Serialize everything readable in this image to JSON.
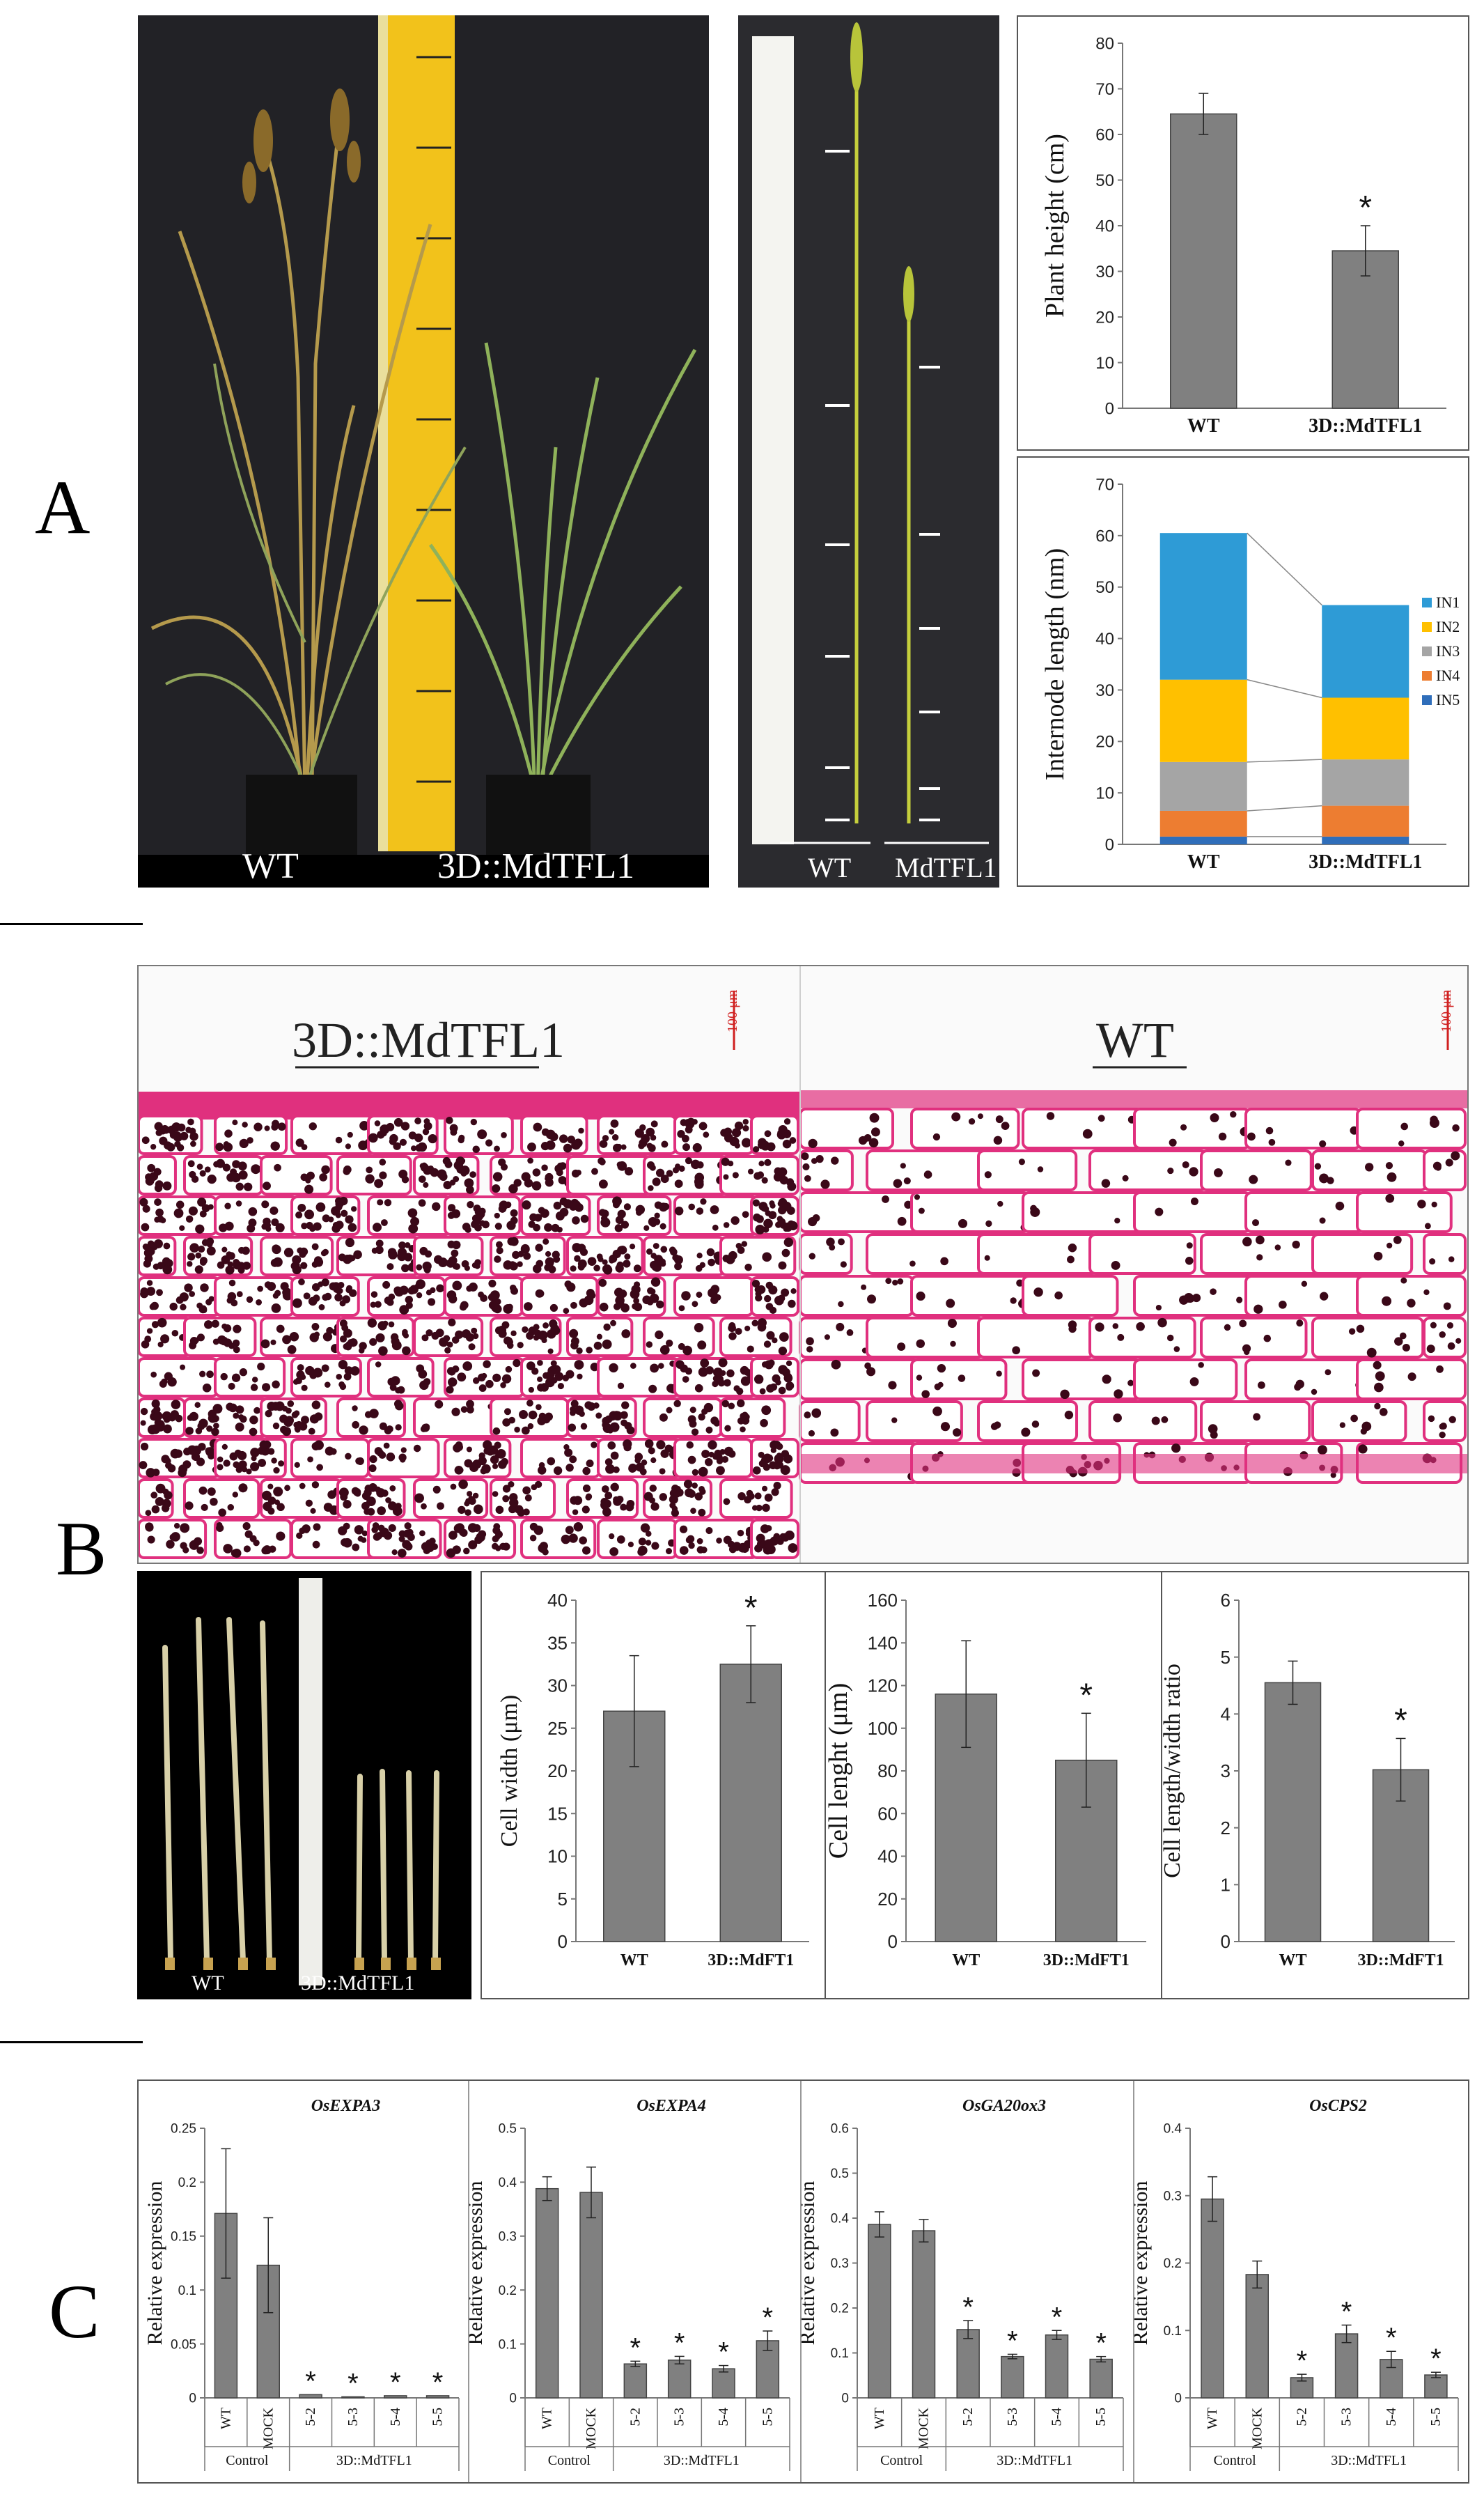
{
  "panel_labels": {
    "a": "A",
    "b": "B",
    "c": "C"
  },
  "photos": {
    "plants": {
      "wt": "WT",
      "mutant": "3D::MdTFL1"
    },
    "stems": {
      "wt": "WT",
      "mutant": "MdTFL1"
    },
    "sections": {
      "left_title": "3D::MdTFL1",
      "right_title": "WT",
      "scale_left": "100 μm",
      "scale_right": "100 μm"
    },
    "internodes": {
      "wt": "WT",
      "mutant": "3D::MdTFL1"
    }
  },
  "colors": {
    "bar_gray": "#808080",
    "IN1": "#2E9BD6",
    "IN2": "#FFC000",
    "IN3": "#A5A5A5",
    "IN4": "#ED7D31",
    "IN5": "#2F6EBA",
    "stain": "#e0307e"
  },
  "chart_data": [
    {
      "id": "plant_height",
      "type": "bar",
      "categories": [
        "WT",
        "3D::MdTFL1"
      ],
      "values": [
        64.5,
        34.5
      ],
      "errors": [
        4.5,
        5.5
      ],
      "significance": [
        "",
        "*"
      ],
      "ylabel": "Plant height (cm)",
      "ylim": [
        0,
        80
      ],
      "yticks": [
        "0",
        "10",
        "20",
        "30",
        "40",
        "50",
        "60",
        "70",
        "80"
      ]
    },
    {
      "id": "internode_length",
      "type": "bar",
      "stacked": true,
      "categories": [
        "WT",
        "3D::MdTFL1"
      ],
      "series": [
        {
          "name": "IN5",
          "values": [
            1.5,
            1.5
          ]
        },
        {
          "name": "IN4",
          "values": [
            5.0,
            6.0
          ]
        },
        {
          "name": "IN3",
          "values": [
            9.5,
            9.0
          ]
        },
        {
          "name": "IN2",
          "values": [
            16.0,
            12.0
          ]
        },
        {
          "name": "IN1",
          "values": [
            28.5,
            18.0
          ]
        }
      ],
      "legend": [
        "IN1",
        "IN2",
        "IN3",
        "IN4",
        "IN5"
      ],
      "legend_position": "right",
      "ylabel": "Internode length (nm)",
      "ylim": [
        0,
        70
      ],
      "yticks": [
        "0",
        "10",
        "20",
        "30",
        "40",
        "50",
        "60",
        "70"
      ]
    },
    {
      "id": "cell_width",
      "type": "bar",
      "categories": [
        "WT",
        "3D::MdFT1"
      ],
      "values": [
        27.0,
        32.5
      ],
      "errors": [
        6.5,
        4.5
      ],
      "significance": [
        "",
        "*"
      ],
      "ylabel": "Cell width (μm)",
      "ylim": [
        0,
        40
      ],
      "yticks": [
        "0",
        "5",
        "10",
        "15",
        "20",
        "25",
        "30",
        "35",
        "40"
      ]
    },
    {
      "id": "cell_length",
      "type": "bar",
      "categories": [
        "WT",
        "3D::MdFT1"
      ],
      "values": [
        116.0,
        85.0
      ],
      "errors": [
        25.0,
        22.0
      ],
      "significance": [
        "",
        "*"
      ],
      "ylabel": "Cell lenght (μm)",
      "ylim": [
        0,
        160
      ],
      "yticks": [
        "0",
        "20",
        "40",
        "60",
        "80",
        "100",
        "120",
        "140",
        "160"
      ]
    },
    {
      "id": "cell_ratio",
      "type": "bar",
      "categories": [
        "WT",
        "3D::MdFT1"
      ],
      "values": [
        4.55,
        3.02
      ],
      "errors": [
        0.38,
        0.55
      ],
      "significance": [
        "",
        "*"
      ],
      "ylabel": "Cell length/width ratio",
      "ylim": [
        0,
        6
      ],
      "yticks": [
        "0",
        "1",
        "2",
        "3",
        "4",
        "5",
        "6"
      ]
    },
    {
      "id": "osexpa3",
      "type": "bar",
      "title": "OsEXPA3",
      "categories": [
        "WT",
        "MOCK",
        "5-2",
        "5-3",
        "5-4",
        "5-5"
      ],
      "groups": [
        {
          "label": "Control",
          "span": 2
        },
        {
          "label": "3D::MdTFL1",
          "span": 4
        }
      ],
      "values": [
        0.171,
        0.123,
        0.003,
        0.001,
        0.002,
        0.002
      ],
      "errors": [
        0.06,
        0.044,
        0.0,
        0.0,
        0.0,
        0.0
      ],
      "significance": [
        "",
        "",
        "*",
        "*",
        "*",
        "*"
      ],
      "ylabel": "Relative expression",
      "ylim": [
        0,
        0.25
      ],
      "yticks": [
        "0",
        "0.05",
        "0.1",
        "0.15",
        "0.2",
        "0.25"
      ]
    },
    {
      "id": "osexpa4",
      "type": "bar",
      "title": "OsEXPA4",
      "categories": [
        "WT",
        "MOCK",
        "5-2",
        "5-3",
        "5-4",
        "5-5"
      ],
      "groups": [
        {
          "label": "Control",
          "span": 2
        },
        {
          "label": "3D::MdTFL1",
          "span": 4
        }
      ],
      "values": [
        0.388,
        0.381,
        0.063,
        0.07,
        0.054,
        0.106
      ],
      "errors": [
        0.022,
        0.047,
        0.005,
        0.007,
        0.006,
        0.018
      ],
      "significance": [
        "",
        "",
        "*",
        "*",
        "*",
        "*"
      ],
      "ylabel": "Relative expression",
      "ylim": [
        0,
        0.5
      ],
      "yticks": [
        "0",
        "0.1",
        "0.2",
        "0.3",
        "0.4",
        "0.5"
      ]
    },
    {
      "id": "osga20ox3",
      "type": "bar",
      "title": "OsGA20ox3",
      "categories": [
        "WT",
        "MOCK",
        "5-2",
        "5-3",
        "5-4",
        "5-5"
      ],
      "groups": [
        {
          "label": "Control",
          "span": 2
        },
        {
          "label": "3D::MdTFL1",
          "span": 4
        }
      ],
      "values": [
        0.386,
        0.372,
        0.152,
        0.092,
        0.14,
        0.086
      ],
      "errors": [
        0.028,
        0.025,
        0.02,
        0.005,
        0.01,
        0.006
      ],
      "significance": [
        "",
        "",
        "*",
        "*",
        "*",
        "*"
      ],
      "ylabel": "Relative expression",
      "ylim": [
        0,
        0.6
      ],
      "yticks": [
        "0",
        "0.1",
        "0.2",
        "0.3",
        "0.4",
        "0.5",
        "0.6"
      ]
    },
    {
      "id": "oscps2",
      "type": "bar",
      "title": "OsCPS2",
      "categories": [
        "WT",
        "MOCK",
        "5-2",
        "5-3",
        "5-4",
        "5-5"
      ],
      "groups": [
        {
          "label": "Control",
          "span": 2
        },
        {
          "label": "3D::MdTFL1",
          "span": 4
        }
      ],
      "values": [
        0.295,
        0.183,
        0.03,
        0.095,
        0.057,
        0.034
      ],
      "errors": [
        0.033,
        0.02,
        0.005,
        0.013,
        0.012,
        0.004
      ],
      "significance": [
        "",
        "",
        "*",
        "*",
        "*",
        "*"
      ],
      "ylabel": "Relative expression",
      "ylim": [
        0,
        0.4
      ],
      "yticks": [
        "0",
        "0.1",
        "0.2",
        "0.3",
        "0.4"
      ]
    }
  ]
}
